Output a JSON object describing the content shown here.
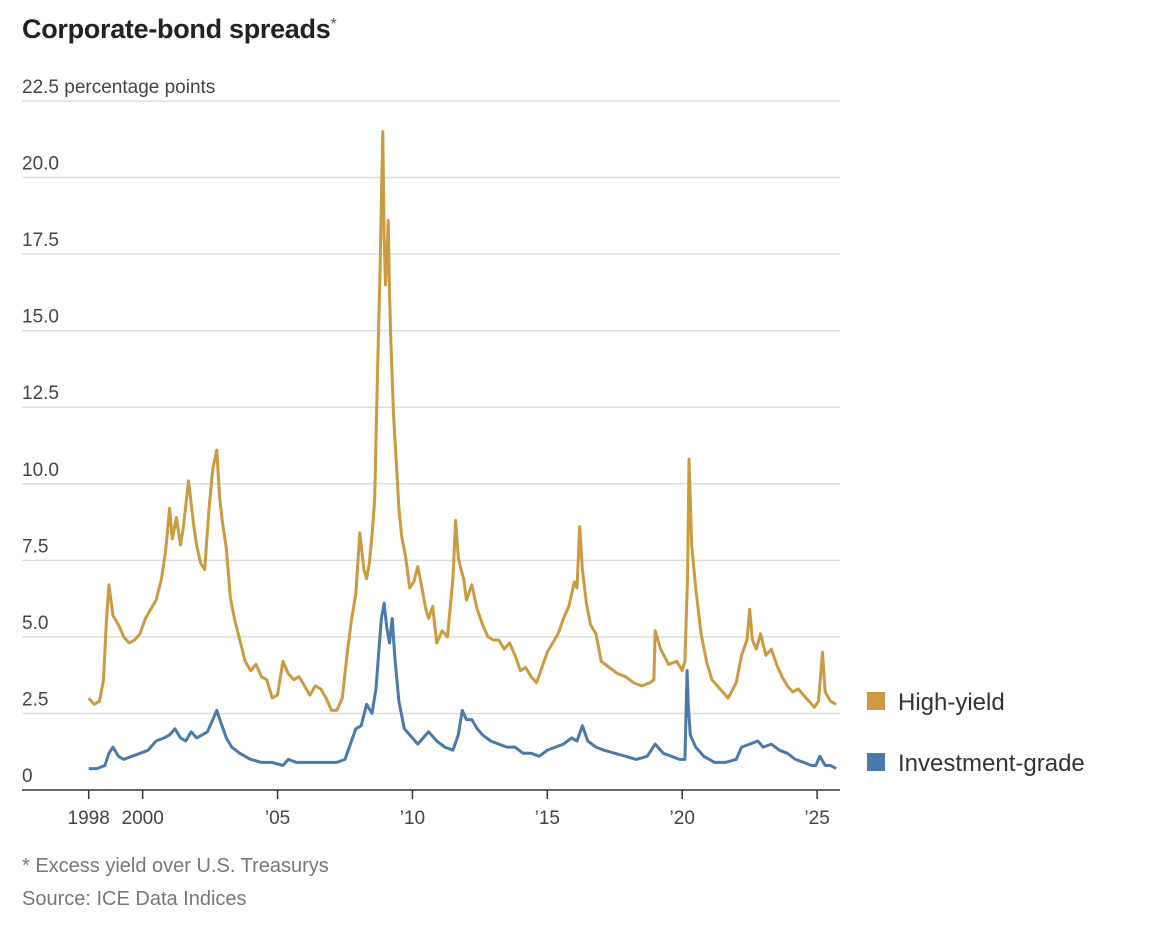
{
  "title": "Corporate-bond spreads",
  "title_mark": "*",
  "footnote": "* Excess yield over U.S. Treasurys",
  "source": "Source: ICE Data Indices",
  "colors": {
    "high_yield": "#cc9a40",
    "investment_grade": "#4a7aaa",
    "grid": "#dddddd",
    "axis": "#333333"
  },
  "chart_data": {
    "type": "line",
    "title": "Corporate-bond spreads*",
    "ylabel": "percentage points",
    "ylim": [
      0,
      22.5
    ],
    "xlim": [
      1997.9,
      2025.7
    ],
    "y_ticks": [
      {
        "value": 22.5,
        "label": "22.5 percentage points"
      },
      {
        "value": 20.0,
        "label": "20.0"
      },
      {
        "value": 17.5,
        "label": "17.5"
      },
      {
        "value": 15.0,
        "label": "15.0"
      },
      {
        "value": 12.5,
        "label": "12.5"
      },
      {
        "value": 10.0,
        "label": "10.0"
      },
      {
        "value": 7.5,
        "label": "7.5"
      },
      {
        "value": 5.0,
        "label": "5.0"
      },
      {
        "value": 2.5,
        "label": "2.5"
      },
      {
        "value": 0,
        "label": "0"
      }
    ],
    "x_ticks": [
      {
        "value": 1998,
        "label": "1998"
      },
      {
        "value": 2000,
        "label": "2000"
      },
      {
        "value": 2005,
        "label": "’05"
      },
      {
        "value": 2010,
        "label": "’10"
      },
      {
        "value": 2015,
        "label": "’15"
      },
      {
        "value": 2020,
        "label": "’20"
      },
      {
        "value": 2025,
        "label": "’25"
      }
    ],
    "series": [
      {
        "name": "High-yield",
        "color": "#cc9a40",
        "x": [
          1998.0,
          1998.2,
          1998.4,
          1998.55,
          1998.65,
          1998.75,
          1998.9,
          1999.1,
          1999.3,
          1999.5,
          1999.7,
          1999.9,
          2000.1,
          2000.3,
          2000.5,
          2000.7,
          2000.85,
          2001.0,
          2001.1,
          2001.25,
          2001.4,
          2001.5,
          2001.7,
          2001.9,
          2002.0,
          2002.15,
          2002.3,
          2002.45,
          2002.6,
          2002.75,
          2002.85,
          2002.95,
          2003.1,
          2003.25,
          2003.4,
          2003.6,
          2003.8,
          2004.0,
          2004.2,
          2004.4,
          2004.6,
          2004.8,
          2005.0,
          2005.2,
          2005.4,
          2005.6,
          2005.8,
          2006.0,
          2006.2,
          2006.4,
          2006.6,
          2006.8,
          2007.0,
          2007.2,
          2007.4,
          2007.6,
          2007.75,
          2007.9,
          2008.05,
          2008.2,
          2008.3,
          2008.4,
          2008.5,
          2008.6,
          2008.7,
          2008.8,
          2008.85,
          2008.9,
          2008.95,
          2009.0,
          2009.05,
          2009.1,
          2009.15,
          2009.2,
          2009.3,
          2009.4,
          2009.5,
          2009.6,
          2009.75,
          2009.9,
          2010.05,
          2010.2,
          2010.35,
          2010.5,
          2010.6,
          2010.75,
          2010.9,
          2011.1,
          2011.3,
          2011.5,
          2011.6,
          2011.7,
          2011.8,
          2011.9,
          2012.0,
          2012.2,
          2012.4,
          2012.6,
          2012.8,
          2013.0,
          2013.2,
          2013.4,
          2013.6,
          2013.8,
          2014.0,
          2014.2,
          2014.4,
          2014.6,
          2014.8,
          2015.0,
          2015.2,
          2015.4,
          2015.6,
          2015.8,
          2016.0,
          2016.1,
          2016.2,
          2016.3,
          2016.45,
          2016.6,
          2016.8,
          2017.0,
          2017.3,
          2017.6,
          2017.9,
          2018.2,
          2018.5,
          2018.8,
          2018.95,
          2019.0,
          2019.2,
          2019.5,
          2019.8,
          2020.0,
          2020.1,
          2020.2,
          2020.25,
          2020.35,
          2020.5,
          2020.7,
          2020.9,
          2021.1,
          2021.4,
          2021.7,
          2022.0,
          2022.2,
          2022.4,
          2022.5,
          2022.6,
          2022.75,
          2022.9,
          2023.1,
          2023.3,
          2023.5,
          2023.7,
          2023.9,
          2024.1,
          2024.3,
          2024.5,
          2024.7,
          2024.9,
          2025.05,
          2025.2,
          2025.3,
          2025.5,
          2025.7
        ],
        "values": [
          3.0,
          2.8,
          2.9,
          3.6,
          5.4,
          6.7,
          5.7,
          5.4,
          5.0,
          4.8,
          4.9,
          5.1,
          5.6,
          5.9,
          6.2,
          6.9,
          7.8,
          9.2,
          8.2,
          8.9,
          8.0,
          8.5,
          10.1,
          8.6,
          8.0,
          7.4,
          7.2,
          9.1,
          10.5,
          11.1,
          9.6,
          8.8,
          7.9,
          6.3,
          5.6,
          4.9,
          4.2,
          3.9,
          4.1,
          3.7,
          3.6,
          3.0,
          3.1,
          4.2,
          3.8,
          3.6,
          3.7,
          3.4,
          3.1,
          3.4,
          3.3,
          3.0,
          2.6,
          2.6,
          3.0,
          4.6,
          5.6,
          6.4,
          8.4,
          7.2,
          6.9,
          7.4,
          8.3,
          9.5,
          13.5,
          17.0,
          19.3,
          21.5,
          18.1,
          16.5,
          17.2,
          18.6,
          16.3,
          14.6,
          12.2,
          10.7,
          9.2,
          8.3,
          7.6,
          6.6,
          6.8,
          7.3,
          6.6,
          5.9,
          5.6,
          6.0,
          4.8,
          5.2,
          5.0,
          6.9,
          8.8,
          7.6,
          7.2,
          6.9,
          6.2,
          6.7,
          5.9,
          5.4,
          5.0,
          4.9,
          4.9,
          4.6,
          4.8,
          4.4,
          3.9,
          4.0,
          3.7,
          3.5,
          4.0,
          4.5,
          4.8,
          5.1,
          5.6,
          6.0,
          6.8,
          6.6,
          8.6,
          7.2,
          6.1,
          5.4,
          5.1,
          4.2,
          4.0,
          3.8,
          3.7,
          3.5,
          3.4,
          3.5,
          3.6,
          5.2,
          4.6,
          4.1,
          4.2,
          3.9,
          4.2,
          7.0,
          10.8,
          8.0,
          6.6,
          5.1,
          4.2,
          3.6,
          3.3,
          3.0,
          3.5,
          4.4,
          4.9,
          5.9,
          4.9,
          4.6,
          5.1,
          4.4,
          4.6,
          4.1,
          3.7,
          3.4,
          3.2,
          3.3,
          3.1,
          2.9,
          2.7,
          2.9,
          4.5,
          3.2,
          2.9,
          2.8
        ]
      },
      {
        "name": "Investment-grade",
        "color": "#4a7aaa",
        "x": [
          1998.0,
          1998.3,
          1998.6,
          1998.75,
          1998.9,
          1999.1,
          1999.3,
          1999.6,
          1999.9,
          2000.2,
          2000.5,
          2000.8,
          2001.0,
          2001.2,
          2001.4,
          2001.6,
          2001.8,
          2002.0,
          2002.2,
          2002.4,
          2002.6,
          2002.75,
          2002.9,
          2003.1,
          2003.3,
          2003.6,
          2004.0,
          2004.4,
          2004.8,
          2005.2,
          2005.4,
          2005.7,
          2006.0,
          2006.4,
          2006.8,
          2007.2,
          2007.5,
          2007.7,
          2007.9,
          2008.1,
          2008.3,
          2008.5,
          2008.65,
          2008.75,
          2008.85,
          2008.95,
          2009.05,
          2009.15,
          2009.25,
          2009.35,
          2009.5,
          2009.7,
          2009.9,
          2010.2,
          2010.4,
          2010.6,
          2010.9,
          2011.2,
          2011.5,
          2011.7,
          2011.85,
          2012.0,
          2012.2,
          2012.4,
          2012.6,
          2012.9,
          2013.2,
          2013.5,
          2013.8,
          2014.1,
          2014.4,
          2014.7,
          2015.0,
          2015.3,
          2015.6,
          2015.9,
          2016.1,
          2016.3,
          2016.5,
          2016.8,
          2017.1,
          2017.5,
          2017.9,
          2018.3,
          2018.7,
          2019.0,
          2019.3,
          2019.6,
          2019.9,
          2020.1,
          2020.18,
          2020.22,
          2020.3,
          2020.5,
          2020.8,
          2021.2,
          2021.6,
          2022.0,
          2022.2,
          2022.5,
          2022.8,
          2023.0,
          2023.3,
          2023.6,
          2023.9,
          2024.2,
          2024.5,
          2024.8,
          2024.95,
          2025.1,
          2025.3,
          2025.5,
          2025.7
        ],
        "values": [
          0.7,
          0.7,
          0.8,
          1.2,
          1.4,
          1.1,
          1.0,
          1.1,
          1.2,
          1.3,
          1.6,
          1.7,
          1.8,
          2.0,
          1.7,
          1.6,
          1.9,
          1.7,
          1.8,
          1.9,
          2.3,
          2.6,
          2.2,
          1.7,
          1.4,
          1.2,
          1.0,
          0.9,
          0.9,
          0.8,
          1.0,
          0.9,
          0.9,
          0.9,
          0.9,
          0.9,
          1.0,
          1.5,
          2.0,
          2.1,
          2.8,
          2.5,
          3.3,
          4.5,
          5.6,
          6.1,
          5.3,
          4.8,
          5.6,
          4.3,
          2.9,
          2.0,
          1.8,
          1.5,
          1.7,
          1.9,
          1.6,
          1.4,
          1.3,
          1.8,
          2.6,
          2.3,
          2.3,
          2.0,
          1.8,
          1.6,
          1.5,
          1.4,
          1.4,
          1.2,
          1.2,
          1.1,
          1.3,
          1.4,
          1.5,
          1.7,
          1.6,
          2.1,
          1.6,
          1.4,
          1.3,
          1.2,
          1.1,
          1.0,
          1.1,
          1.5,
          1.2,
          1.1,
          1.0,
          1.0,
          3.9,
          2.8,
          1.8,
          1.4,
          1.1,
          0.9,
          0.9,
          1.0,
          1.4,
          1.5,
          1.6,
          1.4,
          1.5,
          1.3,
          1.2,
          1.0,
          0.9,
          0.8,
          0.8,
          1.1,
          0.8,
          0.8,
          0.7
        ]
      }
    ],
    "legend": {
      "placement": "right",
      "entries": [
        "High-yield",
        "Investment-grade"
      ]
    }
  }
}
